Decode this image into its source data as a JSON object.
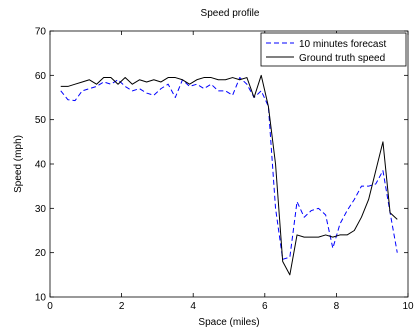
{
  "chart_data": {
    "type": "line",
    "title": "Speed profile",
    "xlabel": "Space (miles)",
    "ylabel": "Speed (mph)",
    "xlim": [
      0,
      10
    ],
    "ylim": [
      10,
      70
    ],
    "xticks": [
      0,
      2,
      4,
      6,
      8,
      10
    ],
    "yticks": [
      10,
      20,
      30,
      40,
      50,
      60,
      70
    ],
    "grid": false,
    "legend_position": "top-right",
    "series": [
      {
        "name": "10 minutes forecast",
        "style": "dashed",
        "color": "#0000ff",
        "x": [
          0.3,
          0.5,
          0.7,
          0.9,
          1.1,
          1.3,
          1.5,
          1.7,
          1.9,
          2.1,
          2.3,
          2.5,
          2.7,
          2.9,
          3.1,
          3.3,
          3.5,
          3.7,
          3.9,
          4.1,
          4.3,
          4.5,
          4.7,
          4.9,
          5.1,
          5.3,
          5.5,
          5.7,
          5.9,
          6.1,
          6.3,
          6.5,
          6.7,
          6.9,
          7.1,
          7.3,
          7.5,
          7.7,
          7.9,
          8.1,
          8.3,
          8.5,
          8.7,
          8.9,
          9.1,
          9.3,
          9.5,
          9.7
        ],
        "values": [
          56.5,
          54.5,
          54.3,
          56.5,
          57.0,
          57.5,
          58.5,
          58.0,
          59.0,
          57.5,
          56.5,
          57.0,
          56.0,
          55.5,
          57.0,
          58.0,
          55.0,
          59.0,
          57.5,
          58.0,
          57.0,
          58.0,
          56.5,
          56.5,
          55.5,
          59.5,
          58.0,
          55.0,
          56.5,
          53.0,
          30.0,
          18.5,
          19.0,
          31.5,
          28.0,
          29.5,
          30.0,
          28.5,
          21.0,
          26.5,
          29.5,
          32.0,
          35.0,
          35.0,
          35.5,
          38.5,
          29.0,
          20.0
        ]
      },
      {
        "name": "Ground truth speed",
        "style": "solid",
        "color": "#000000",
        "x": [
          0.3,
          0.5,
          0.7,
          0.9,
          1.1,
          1.3,
          1.5,
          1.7,
          1.9,
          2.1,
          2.3,
          2.5,
          2.7,
          2.9,
          3.1,
          3.3,
          3.5,
          3.7,
          3.9,
          4.1,
          4.3,
          4.5,
          4.7,
          4.9,
          5.1,
          5.3,
          5.5,
          5.7,
          5.9,
          6.1,
          6.3,
          6.5,
          6.7,
          6.9,
          7.1,
          7.3,
          7.5,
          7.7,
          7.9,
          8.1,
          8.3,
          8.5,
          8.7,
          8.9,
          9.1,
          9.3,
          9.5,
          9.7
        ],
        "values": [
          57.5,
          57.5,
          58.0,
          58.5,
          59.0,
          58.0,
          59.5,
          59.5,
          58.0,
          59.5,
          58.0,
          59.0,
          58.5,
          59.0,
          58.5,
          59.5,
          59.5,
          59.0,
          58.0,
          59.0,
          59.5,
          59.5,
          59.0,
          59.0,
          59.5,
          59.0,
          59.5,
          55.0,
          60.0,
          53.0,
          40.0,
          18.0,
          15.0,
          24.0,
          23.5,
          23.5,
          23.5,
          24.0,
          23.5,
          24.0,
          24.0,
          25.0,
          28.0,
          32.0,
          38.5,
          45.0,
          29.0,
          27.5
        ]
      }
    ]
  }
}
